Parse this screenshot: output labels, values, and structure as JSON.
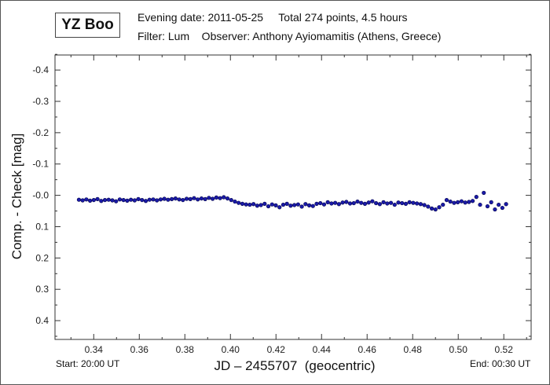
{
  "header": {
    "star_name": "YZ Boo",
    "line1": "Evening date: 2011-05-25     Total 274 points, 4.5 hours",
    "line2": "Filter: Lum    Observer: Anthony Ayiomamitis (Athens, Greece)"
  },
  "footer": {
    "start": "Start: 20:00 UT",
    "end": "End: 00:30 UT"
  },
  "chart_data": {
    "type": "scatter",
    "title": "YZ Boo",
    "xlabel": "JD – 2455707  (geocentric)",
    "ylabel": "Comp. - Check [mag]",
    "xlim": [
      0.323,
      0.532
    ],
    "ylim": [
      -0.448,
      0.46
    ],
    "y_inverted": true,
    "grid": false,
    "x_ticks": [
      0.34,
      0.36,
      0.38,
      0.4,
      0.42,
      0.44,
      0.46,
      0.48,
      0.5,
      0.52
    ],
    "x_tick_labels": [
      "0.34",
      "0.36",
      "0.38",
      "0.40",
      "0.42",
      "0.44",
      "0.46",
      "0.48",
      "0.50",
      "0.52"
    ],
    "y_ticks": [
      -0.4,
      -0.3,
      -0.2,
      -0.1,
      0.0,
      0.1,
      0.2,
      0.3,
      0.4
    ],
    "y_tick_labels": [
      "-0.4",
      "-0.3",
      "-0.2",
      "-0.1",
      "-0.0",
      "0.1",
      "0.2",
      "0.3",
      "0.4"
    ],
    "marker_color": "#1a1aa8",
    "marker_edge": "#000044",
    "series": [
      {
        "name": "Comp - Check",
        "x_first": 0.3335,
        "x_last": 0.521,
        "y": [
          0.014,
          0.016,
          0.013,
          0.017,
          0.015,
          0.012,
          0.018,
          0.015,
          0.014,
          0.016,
          0.019,
          0.013,
          0.015,
          0.017,
          0.014,
          0.016,
          0.012,
          0.015,
          0.018,
          0.014,
          0.013,
          0.016,
          0.013,
          0.011,
          0.014,
          0.012,
          0.01,
          0.013,
          0.015,
          0.011,
          0.012,
          0.009,
          0.013,
          0.01,
          0.012,
          0.008,
          0.011,
          0.007,
          0.009,
          0.006,
          0.01,
          0.015,
          0.02,
          0.024,
          0.027,
          0.029,
          0.03,
          0.028,
          0.033,
          0.031,
          0.027,
          0.035,
          0.029,
          0.032,
          0.038,
          0.03,
          0.027,
          0.033,
          0.031,
          0.029,
          0.036,
          0.028,
          0.032,
          0.034,
          0.027,
          0.025,
          0.029,
          0.022,
          0.026,
          0.024,
          0.028,
          0.023,
          0.021,
          0.026,
          0.025,
          0.02,
          0.024,
          0.027,
          0.023,
          0.019,
          0.025,
          0.028,
          0.022,
          0.026,
          0.024,
          0.03,
          0.023,
          0.025,
          0.027,
          0.022,
          0.024,
          0.026,
          0.028,
          0.031,
          0.036,
          0.042,
          0.045,
          0.038,
          0.03,
          0.015,
          0.02,
          0.024,
          0.022,
          0.019,
          0.023,
          0.021,
          0.018,
          0.005,
          0.03,
          -0.008,
          0.035,
          0.022,
          0.045,
          0.03,
          0.04,
          0.028
        ]
      }
    ]
  }
}
